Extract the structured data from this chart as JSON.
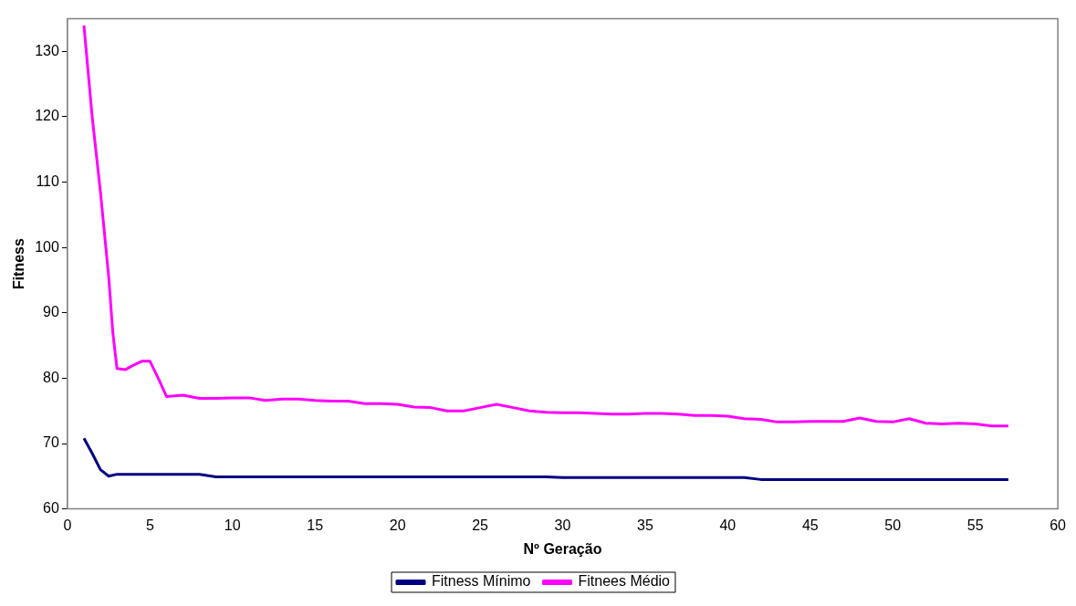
{
  "chart_data": {
    "type": "line",
    "xlabel": "Nº Geração",
    "ylabel": "Fitness",
    "xlim": [
      0,
      60
    ],
    "xticks": [
      0,
      5,
      10,
      15,
      20,
      25,
      30,
      35,
      40,
      45,
      50,
      55,
      60
    ],
    "ylim": [
      60,
      135
    ],
    "yticks": [
      60,
      70,
      80,
      90,
      100,
      110,
      120,
      130
    ],
    "grid": false,
    "legend": "bottom",
    "marker": "none",
    "line_style": "solid",
    "series": [
      {
        "name": "Fitness Mínimo",
        "color": "#000080",
        "x": [
          1,
          1.5,
          2,
          2.5,
          3,
          4,
          5,
          6,
          7,
          8,
          9,
          10,
          15,
          20,
          25,
          29,
          30,
          35,
          40,
          41,
          42,
          45,
          50,
          55,
          57
        ],
        "values": [
          70.8,
          68.5,
          66,
          65,
          65.3,
          65.3,
          65.3,
          65.3,
          65.3,
          65.3,
          64.9,
          64.9,
          64.9,
          64.9,
          64.9,
          64.9,
          64.8,
          64.8,
          64.8,
          64.8,
          64.5,
          64.5,
          64.5,
          64.5,
          64.5
        ]
      },
      {
        "name": "Fitnees Médio",
        "color": "#ff00ff",
        "x": [
          1,
          1.5,
          2,
          2.5,
          2.75,
          3,
          3.5,
          4,
          4.5,
          5,
          5.5,
          6,
          7,
          8,
          9,
          10,
          11,
          12,
          13,
          14,
          15,
          16,
          17,
          18,
          19,
          20,
          21,
          22,
          23,
          24,
          25,
          26,
          27,
          28,
          29,
          30,
          31,
          32,
          33,
          34,
          35,
          36,
          37,
          38,
          39,
          40,
          41,
          42,
          43,
          44,
          45,
          46,
          47,
          48,
          49,
          50,
          51,
          52,
          53,
          54,
          55,
          56,
          57
        ],
        "values": [
          134,
          120,
          108.5,
          95.5,
          87,
          81.5,
          81.3,
          82,
          82.6,
          82.6,
          80,
          77.2,
          77.4,
          76.9,
          76.9,
          77,
          77,
          76.6,
          76.8,
          76.8,
          76.6,
          76.5,
          76.5,
          76.1,
          76.1,
          76,
          75.6,
          75.5,
          75,
          75,
          75.5,
          76,
          75.5,
          75,
          74.8,
          74.7,
          74.7,
          74.6,
          74.5,
          74.5,
          74.6,
          74.6,
          74.5,
          74.3,
          74.3,
          74.2,
          73.8,
          73.7,
          73.3,
          73.3,
          73.4,
          73.4,
          73.4,
          73.9,
          73.4,
          73.3,
          73.8,
          73.1,
          73,
          73.1,
          73,
          72.7,
          72.7
        ]
      }
    ]
  }
}
